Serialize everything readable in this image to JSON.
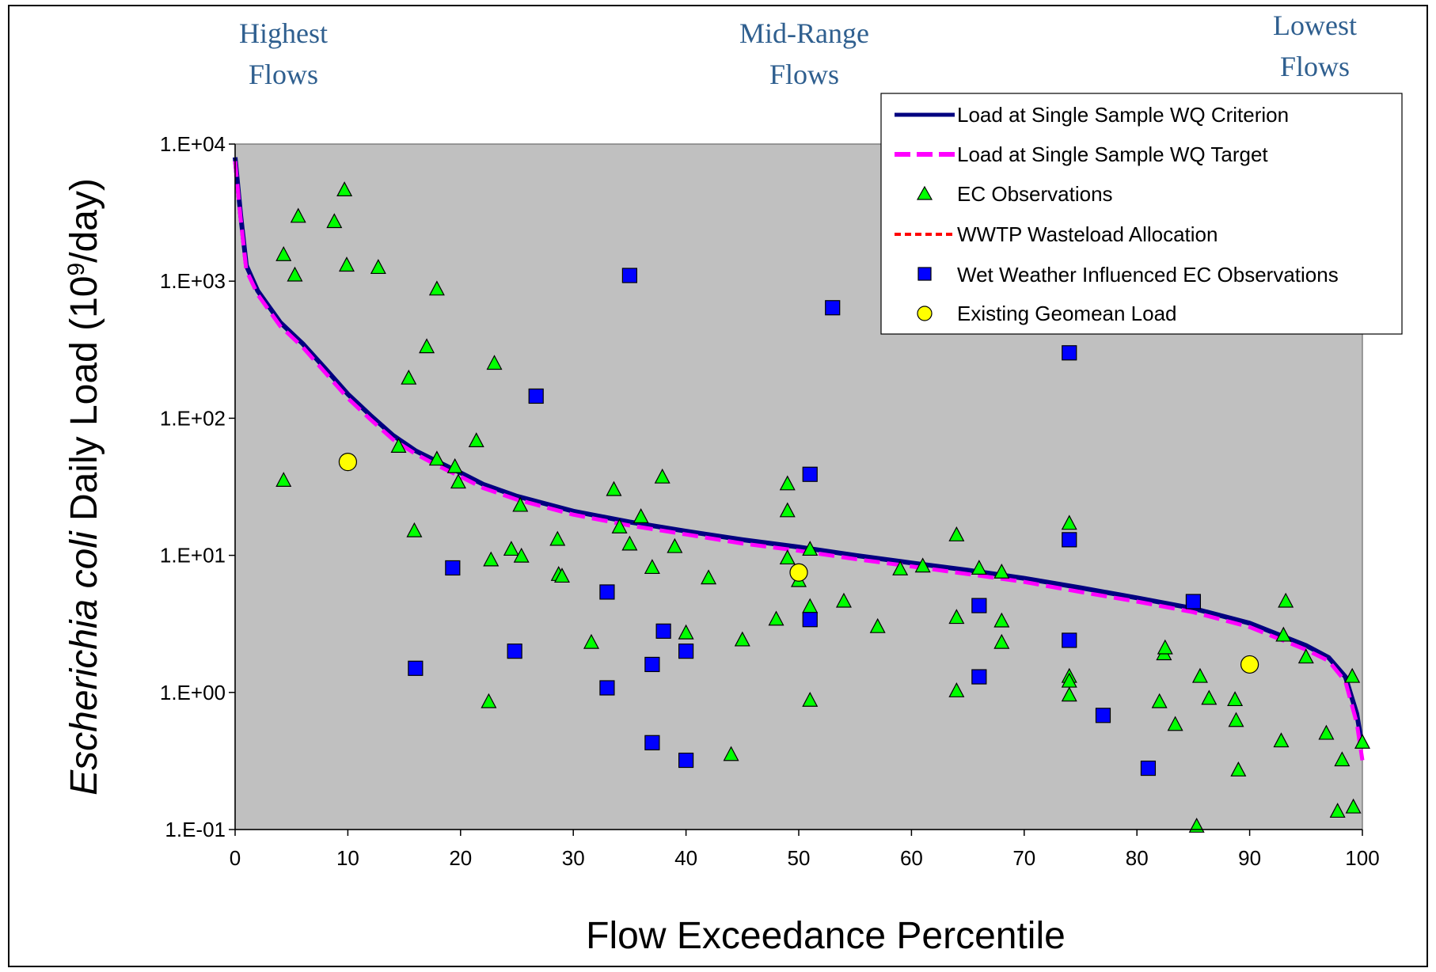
{
  "chart_data": {
    "type": "scatter",
    "title": "",
    "xlabel": "Flow Exceedance Percentile",
    "ylabel_italic": "Escherichia coli",
    "ylabel_rest": " Daily Load (10",
    "ylabel_sup": "9",
    "ylabel_end": "/day)",
    "xlim": [
      0,
      100
    ],
    "ylim": [
      0.1,
      10000
    ],
    "yscale": "log",
    "grid": false,
    "plot_background": "#c0c0c0",
    "x_ticks": [
      0,
      10,
      20,
      30,
      40,
      50,
      60,
      70,
      80,
      90,
      100
    ],
    "y_ticks": [
      {
        "value": 10000,
        "label": "1.E+04"
      },
      {
        "value": 1000,
        "label": "1.E+03"
      },
      {
        "value": 100,
        "label": "1.E+02"
      },
      {
        "value": 10,
        "label": "1.E+01"
      },
      {
        "value": 1,
        "label": "1.E+00"
      },
      {
        "value": 0.1,
        "label": "1.E-01"
      }
    ],
    "regions": [
      {
        "line1": "Highest",
        "line2": "Flows"
      },
      {
        "line1": "Mid-Range",
        "line2": "Flows"
      },
      {
        "line1": "Lowest",
        "line2": "Flows"
      }
    ],
    "legend_position": "top-right",
    "series": [
      {
        "name": "Load at Single Sample WQ Criterion",
        "kind": "line",
        "color": "#000080",
        "points": [
          [
            0,
            8000
          ],
          [
            0.5,
            3000
          ],
          [
            1,
            1300
          ],
          [
            2,
            850
          ],
          [
            4,
            500
          ],
          [
            6,
            350
          ],
          [
            8,
            230
          ],
          [
            10,
            150
          ],
          [
            12,
            105
          ],
          [
            14,
            75
          ],
          [
            16,
            58
          ],
          [
            18,
            48
          ],
          [
            20,
            40
          ],
          [
            22,
            33
          ],
          [
            25,
            27
          ],
          [
            30,
            21
          ],
          [
            35,
            17.5
          ],
          [
            40,
            15
          ],
          [
            45,
            13
          ],
          [
            50,
            11.5
          ],
          [
            55,
            10
          ],
          [
            60,
            8.8
          ],
          [
            65,
            7.8
          ],
          [
            70,
            6.8
          ],
          [
            75,
            5.8
          ],
          [
            80,
            4.9
          ],
          [
            85,
            4.1
          ],
          [
            90,
            3.2
          ],
          [
            95,
            2.2
          ],
          [
            97,
            1.8
          ],
          [
            98.5,
            1.3
          ],
          [
            99.5,
            0.7
          ],
          [
            100,
            0.4
          ]
        ]
      },
      {
        "name": "Load at Single Sample WQ Target",
        "kind": "line",
        "color": "#ff00ff",
        "points": [
          [
            0,
            7500
          ],
          [
            0.5,
            2800
          ],
          [
            1,
            1200
          ],
          [
            2,
            800
          ],
          [
            4,
            470
          ],
          [
            6,
            330
          ],
          [
            8,
            215
          ],
          [
            10,
            140
          ],
          [
            12,
            98
          ],
          [
            14,
            70
          ],
          [
            16,
            55
          ],
          [
            18,
            45
          ],
          [
            20,
            37.5
          ],
          [
            22,
            31
          ],
          [
            25,
            25.5
          ],
          [
            30,
            19.8
          ],
          [
            35,
            16.5
          ],
          [
            40,
            14.2
          ],
          [
            45,
            12.2
          ],
          [
            50,
            10.8
          ],
          [
            55,
            9.4
          ],
          [
            60,
            8.3
          ],
          [
            65,
            7.3
          ],
          [
            70,
            6.4
          ],
          [
            75,
            5.4
          ],
          [
            80,
            4.6
          ],
          [
            85,
            3.85
          ],
          [
            90,
            3.0
          ],
          [
            95,
            2.05
          ],
          [
            97,
            1.7
          ],
          [
            98.5,
            1.2
          ],
          [
            99.5,
            0.6
          ],
          [
            100,
            0.32
          ]
        ]
      },
      {
        "name": "EC Observations",
        "kind": "scatter",
        "marker": "triangle",
        "color": "#00ff00",
        "points": [
          [
            4.3,
            35
          ],
          [
            4.3,
            1550
          ],
          [
            5.3,
            1100
          ],
          [
            5.6,
            2950
          ],
          [
            8.8,
            2700
          ],
          [
            9.7,
            4600
          ],
          [
            9.9,
            1300
          ],
          [
            12.7,
            1250
          ],
          [
            14.5,
            62
          ],
          [
            15.4,
            195
          ],
          [
            15.9,
            15
          ],
          [
            17,
            330
          ],
          [
            17.9,
            870
          ],
          [
            17.9,
            50
          ],
          [
            19.5,
            44
          ],
          [
            19.8,
            34
          ],
          [
            21.4,
            68
          ],
          [
            22.5,
            0.85
          ],
          [
            22.7,
            9.2
          ],
          [
            23,
            250
          ],
          [
            24.5,
            11
          ],
          [
            25.3,
            23
          ],
          [
            25.4,
            9.8
          ],
          [
            28.6,
            13
          ],
          [
            28.7,
            7.2
          ],
          [
            29,
            7
          ],
          [
            31.6,
            2.3
          ],
          [
            33.6,
            30
          ],
          [
            34.1,
            16
          ],
          [
            35,
            12
          ],
          [
            36,
            19
          ],
          [
            37,
            8.1
          ],
          [
            37.9,
            37
          ],
          [
            39,
            11.5
          ],
          [
            40,
            2.7
          ],
          [
            42,
            6.8
          ],
          [
            44,
            0.35
          ],
          [
            45,
            2.4
          ],
          [
            48,
            3.4
          ],
          [
            49,
            33
          ],
          [
            49,
            21
          ],
          [
            49,
            9.5
          ],
          [
            50,
            6.5
          ],
          [
            51,
            11
          ],
          [
            51,
            4.2
          ],
          [
            51,
            0.87
          ],
          [
            54,
            4.6
          ],
          [
            57,
            3
          ],
          [
            59,
            7.9
          ],
          [
            61,
            8.3
          ],
          [
            64,
            14
          ],
          [
            64,
            3.5
          ],
          [
            64,
            1.02
          ],
          [
            66,
            8
          ],
          [
            68,
            7.5
          ],
          [
            68,
            3.3
          ],
          [
            68,
            2.3
          ],
          [
            74,
            17
          ],
          [
            74,
            1.3
          ],
          [
            74,
            1.2
          ],
          [
            74,
            0.95
          ],
          [
            82,
            0.85
          ],
          [
            82.4,
            1.9
          ],
          [
            82.5,
            2.1
          ],
          [
            83.4,
            0.58
          ],
          [
            85.3,
            0.105
          ],
          [
            85.6,
            1.3
          ],
          [
            86.4,
            0.9
          ],
          [
            88.7,
            0.88
          ],
          [
            88.8,
            0.62
          ],
          [
            89,
            0.27
          ],
          [
            92.8,
            0.44
          ],
          [
            93,
            2.6
          ],
          [
            93.2,
            4.6
          ],
          [
            95,
            1.8
          ],
          [
            96.8,
            0.5
          ],
          [
            97.8,
            0.135
          ],
          [
            98.2,
            0.32
          ],
          [
            99.1,
            1.3
          ],
          [
            99.2,
            0.145
          ],
          [
            100,
            0.43
          ]
        ]
      },
      {
        "name": "WWTP Wasteload Allocation",
        "kind": "line",
        "color": "#ff0000",
        "points": []
      },
      {
        "name": "Wet Weather Influenced EC Observations",
        "kind": "scatter",
        "marker": "square",
        "color": "#0000ff",
        "points": [
          [
            16,
            1.5
          ],
          [
            19.3,
            8.1
          ],
          [
            24.8,
            2
          ],
          [
            26.7,
            145
          ],
          [
            33,
            5.4
          ],
          [
            33,
            1.08
          ],
          [
            35,
            1100
          ],
          [
            37,
            1.6
          ],
          [
            37,
            0.43
          ],
          [
            38,
            2.8
          ],
          [
            40,
            2
          ],
          [
            40,
            0.32
          ],
          [
            51,
            39
          ],
          [
            51,
            3.4
          ],
          [
            53,
            640
          ],
          [
            66,
            4.3
          ],
          [
            66,
            1.3
          ],
          [
            74,
            300
          ],
          [
            74,
            13
          ],
          [
            74,
            2.4
          ],
          [
            77,
            0.68
          ],
          [
            81,
            0.28
          ],
          [
            85,
            4.6
          ]
        ]
      },
      {
        "name": "Existing Geomean Load",
        "kind": "scatter",
        "marker": "circle",
        "color": "#ffff00",
        "points": [
          [
            10,
            48
          ],
          [
            50,
            7.5
          ],
          [
            90,
            1.6
          ]
        ]
      }
    ]
  }
}
